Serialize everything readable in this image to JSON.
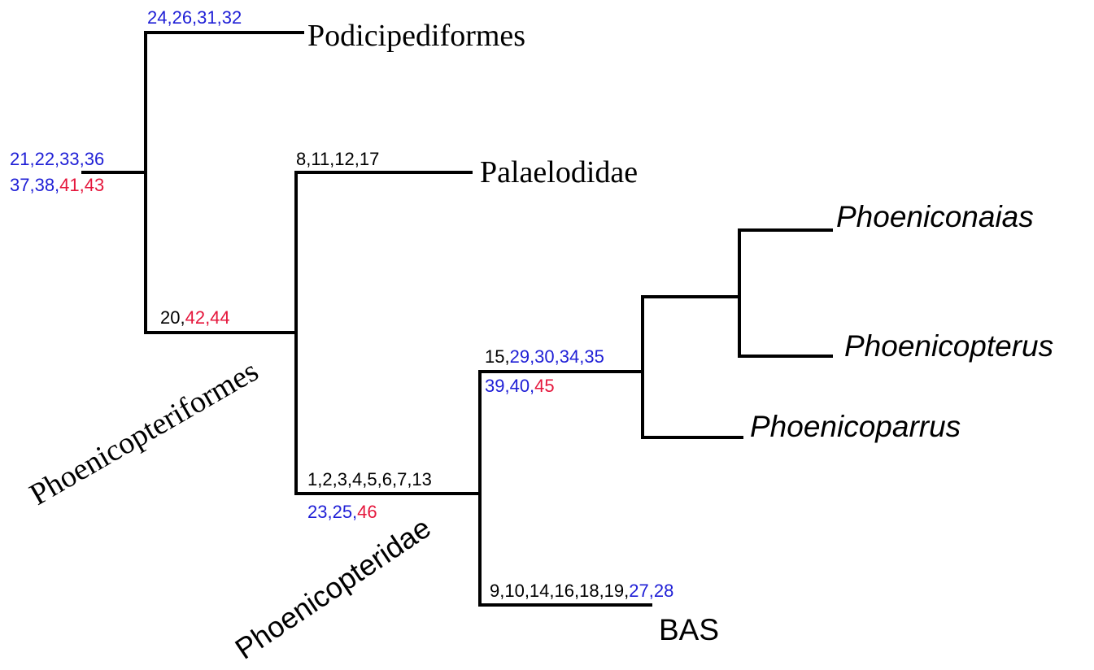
{
  "colors": {
    "branch": "#000000",
    "black": "#000000",
    "blue": "#1f1fd6",
    "red": "#e5173c"
  },
  "taxa": {
    "podicipediformes": "Podicipediformes",
    "palaelodidae": "Palaelodidae",
    "phoeniconaias": "Phoeniconaias",
    "phoenicopterus": "Phoenicopterus",
    "phoenicoparrus": "Phoenicoparrus",
    "bas": "BAS"
  },
  "clades": {
    "phoenicopteriformes": "Phoenicopteriformes",
    "phoenicopteridae": "Phoenicopteridae"
  },
  "characters": {
    "podicipediformes_line": [
      {
        "t": "24,26,31,32",
        "c": "blue"
      }
    ],
    "root_line1": [
      {
        "t": "21,22,33,36",
        "c": "blue"
      }
    ],
    "root_line2": [
      {
        "t": "37,38,",
        "c": "blue"
      },
      {
        "t": "41,43",
        "c": "red"
      }
    ],
    "palaelodidae_line": [
      {
        "t": "8,11,12,17",
        "c": "black"
      }
    ],
    "phoenicopteriformes_line": [
      {
        "t": "20,",
        "c": "black"
      },
      {
        "t": "42,44",
        "c": "red"
      }
    ],
    "phoenicopteridae_line1": [
      {
        "t": "1,2,3,4,5,6,7,13",
        "c": "black"
      }
    ],
    "phoenicopteridae_line2": [
      {
        "t": "23,25,",
        "c": "blue"
      },
      {
        "t": "46",
        "c": "red"
      }
    ],
    "crown_line1": [
      {
        "t": "15,",
        "c": "black"
      },
      {
        "t": "29,30,34,35",
        "c": "blue"
      }
    ],
    "crown_line2": [
      {
        "t": "39,40,",
        "c": "blue"
      },
      {
        "t": "45",
        "c": "red"
      }
    ],
    "bas_line": [
      {
        "t": "9,10,14,16,18,19,",
        "c": "black"
      },
      {
        "t": "27,28",
        "c": "blue"
      }
    ]
  }
}
